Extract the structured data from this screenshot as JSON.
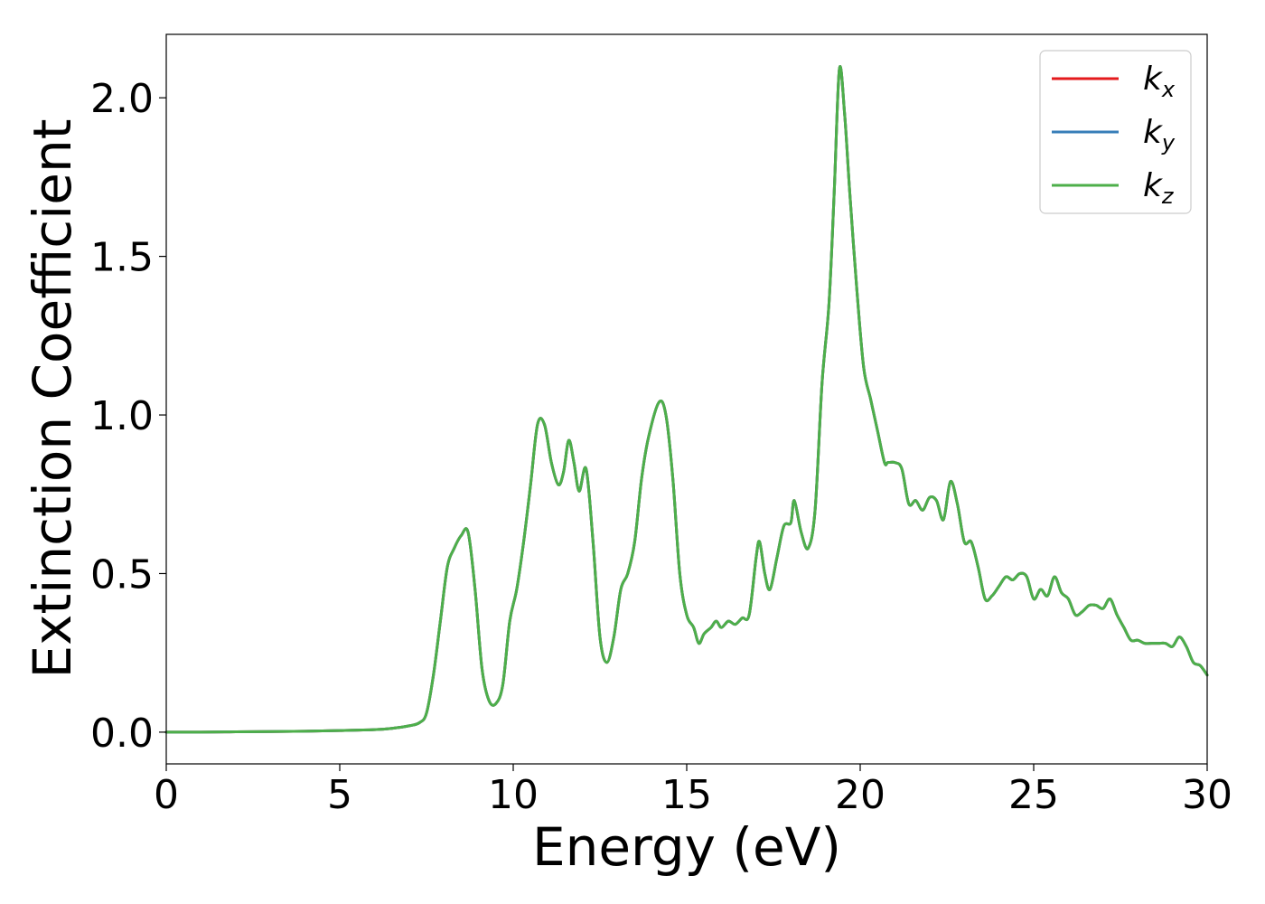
{
  "chart_data": {
    "type": "line",
    "title": "",
    "xlabel": "Energy (eV)",
    "ylabel": "Extinction Coefficient",
    "xlim": [
      0,
      30
    ],
    "ylim": [
      -0.1,
      2.2
    ],
    "xticks": [
      0,
      5,
      10,
      15,
      20,
      25,
      30
    ],
    "xtick_labels": [
      "0",
      "5",
      "10",
      "15",
      "20",
      "25",
      "30"
    ],
    "yticks": [
      0.0,
      0.5,
      1.0,
      1.5,
      2.0
    ],
    "ytick_labels": [
      "0.0",
      "0.5",
      "1.0",
      "1.5",
      "2.0"
    ],
    "grid": false,
    "legend_position": "top-right",
    "x": [
      0,
      1,
      2,
      3,
      4,
      5,
      6,
      6.5,
      7,
      7.3,
      7.5,
      7.7,
      7.9,
      8.1,
      8.3,
      8.5,
      8.7,
      8.9,
      9.1,
      9.3,
      9.5,
      9.7,
      9.9,
      10.1,
      10.3,
      10.5,
      10.7,
      10.9,
      11.1,
      11.3,
      11.45,
      11.6,
      11.75,
      11.9,
      12.1,
      12.3,
      12.5,
      12.7,
      12.9,
      13.1,
      13.3,
      13.5,
      13.7,
      13.9,
      14.2,
      14.4,
      14.6,
      14.8,
      15.0,
      15.2,
      15.35,
      15.5,
      15.7,
      15.85,
      16.0,
      16.2,
      16.4,
      16.6,
      16.8,
      17.0,
      17.1,
      17.25,
      17.4,
      17.6,
      17.8,
      18.0,
      18.1,
      18.3,
      18.5,
      18.7,
      18.9,
      19.1,
      19.25,
      19.4,
      19.55,
      19.7,
      19.9,
      20.1,
      20.3,
      20.5,
      20.7,
      20.8,
      21.0,
      21.2,
      21.4,
      21.6,
      21.8,
      22.0,
      22.2,
      22.4,
      22.6,
      22.8,
      23.0,
      23.2,
      23.4,
      23.6,
      23.8,
      24.0,
      24.2,
      24.4,
      24.6,
      24.8,
      25.0,
      25.2,
      25.4,
      25.6,
      25.8,
      26.0,
      26.2,
      26.4,
      26.6,
      26.8,
      27.0,
      27.2,
      27.4,
      27.6,
      27.8,
      28.0,
      28.2,
      28.4,
      28.6,
      28.8,
      29.0,
      29.2,
      29.4,
      29.6,
      29.8,
      30.0
    ],
    "series": [
      {
        "name": "k_x",
        "color": "#e41a1c",
        "values": [
          0.0,
          0.0,
          0.001,
          0.002,
          0.003,
          0.005,
          0.008,
          0.012,
          0.02,
          0.03,
          0.06,
          0.18,
          0.35,
          0.52,
          0.58,
          0.62,
          0.63,
          0.45,
          0.2,
          0.1,
          0.09,
          0.15,
          0.35,
          0.45,
          0.6,
          0.78,
          0.97,
          0.97,
          0.85,
          0.78,
          0.82,
          0.92,
          0.85,
          0.76,
          0.83,
          0.6,
          0.3,
          0.22,
          0.3,
          0.45,
          0.5,
          0.6,
          0.8,
          0.93,
          1.04,
          1.0,
          0.8,
          0.5,
          0.37,
          0.33,
          0.28,
          0.31,
          0.33,
          0.35,
          0.33,
          0.35,
          0.34,
          0.36,
          0.37,
          0.55,
          0.6,
          0.5,
          0.45,
          0.55,
          0.65,
          0.66,
          0.73,
          0.63,
          0.58,
          0.7,
          1.1,
          1.35,
          1.7,
          2.09,
          1.95,
          1.7,
          1.4,
          1.15,
          1.05,
          0.95,
          0.85,
          0.85,
          0.85,
          0.83,
          0.72,
          0.73,
          0.7,
          0.74,
          0.73,
          0.67,
          0.79,
          0.72,
          0.6,
          0.6,
          0.52,
          0.42,
          0.43,
          0.46,
          0.49,
          0.48,
          0.5,
          0.49,
          0.42,
          0.45,
          0.43,
          0.49,
          0.44,
          0.42,
          0.37,
          0.38,
          0.4,
          0.4,
          0.39,
          0.42,
          0.37,
          0.33,
          0.29,
          0.29,
          0.28,
          0.28,
          0.28,
          0.28,
          0.27,
          0.3,
          0.27,
          0.22,
          0.21,
          0.18
        ]
      },
      {
        "name": "k_y",
        "color": "#377eb8",
        "values": [
          0.0,
          0.0,
          0.001,
          0.002,
          0.003,
          0.005,
          0.008,
          0.012,
          0.02,
          0.03,
          0.06,
          0.18,
          0.35,
          0.52,
          0.58,
          0.62,
          0.63,
          0.45,
          0.2,
          0.1,
          0.09,
          0.15,
          0.35,
          0.45,
          0.6,
          0.78,
          0.97,
          0.97,
          0.85,
          0.78,
          0.82,
          0.92,
          0.85,
          0.76,
          0.83,
          0.6,
          0.3,
          0.22,
          0.3,
          0.45,
          0.5,
          0.6,
          0.8,
          0.93,
          1.04,
          1.0,
          0.8,
          0.5,
          0.37,
          0.33,
          0.28,
          0.31,
          0.33,
          0.35,
          0.33,
          0.35,
          0.34,
          0.36,
          0.37,
          0.55,
          0.6,
          0.5,
          0.45,
          0.55,
          0.65,
          0.66,
          0.73,
          0.63,
          0.58,
          0.7,
          1.1,
          1.35,
          1.7,
          2.09,
          1.95,
          1.7,
          1.4,
          1.15,
          1.05,
          0.95,
          0.85,
          0.85,
          0.85,
          0.83,
          0.72,
          0.73,
          0.7,
          0.74,
          0.73,
          0.67,
          0.79,
          0.72,
          0.6,
          0.6,
          0.52,
          0.42,
          0.43,
          0.46,
          0.49,
          0.48,
          0.5,
          0.49,
          0.42,
          0.45,
          0.43,
          0.49,
          0.44,
          0.42,
          0.37,
          0.38,
          0.4,
          0.4,
          0.39,
          0.42,
          0.37,
          0.33,
          0.29,
          0.29,
          0.28,
          0.28,
          0.28,
          0.28,
          0.27,
          0.3,
          0.27,
          0.22,
          0.21,
          0.18
        ]
      },
      {
        "name": "k_z",
        "color": "#4daf4a",
        "values": [
          0.0,
          0.0,
          0.001,
          0.002,
          0.003,
          0.005,
          0.008,
          0.012,
          0.02,
          0.03,
          0.06,
          0.18,
          0.35,
          0.52,
          0.58,
          0.62,
          0.63,
          0.45,
          0.2,
          0.1,
          0.09,
          0.15,
          0.35,
          0.45,
          0.6,
          0.78,
          0.97,
          0.97,
          0.85,
          0.78,
          0.82,
          0.92,
          0.85,
          0.76,
          0.83,
          0.6,
          0.3,
          0.22,
          0.3,
          0.45,
          0.5,
          0.6,
          0.8,
          0.93,
          1.04,
          1.0,
          0.8,
          0.5,
          0.37,
          0.33,
          0.28,
          0.31,
          0.33,
          0.35,
          0.33,
          0.35,
          0.34,
          0.36,
          0.37,
          0.55,
          0.6,
          0.5,
          0.45,
          0.55,
          0.65,
          0.66,
          0.73,
          0.63,
          0.58,
          0.7,
          1.1,
          1.35,
          1.7,
          2.09,
          1.95,
          1.7,
          1.4,
          1.15,
          1.05,
          0.95,
          0.85,
          0.85,
          0.85,
          0.83,
          0.72,
          0.73,
          0.7,
          0.74,
          0.73,
          0.67,
          0.79,
          0.72,
          0.6,
          0.6,
          0.52,
          0.42,
          0.43,
          0.46,
          0.49,
          0.48,
          0.5,
          0.49,
          0.42,
          0.45,
          0.43,
          0.49,
          0.44,
          0.42,
          0.37,
          0.38,
          0.4,
          0.4,
          0.39,
          0.42,
          0.37,
          0.33,
          0.29,
          0.29,
          0.28,
          0.28,
          0.28,
          0.28,
          0.27,
          0.3,
          0.27,
          0.22,
          0.21,
          0.18
        ]
      }
    ],
    "legend": [
      {
        "base": "k",
        "sub": "x",
        "color": "#e41a1c"
      },
      {
        "base": "k",
        "sub": "y",
        "color": "#377eb8"
      },
      {
        "base": "k",
        "sub": "z",
        "color": "#4daf4a"
      }
    ]
  }
}
